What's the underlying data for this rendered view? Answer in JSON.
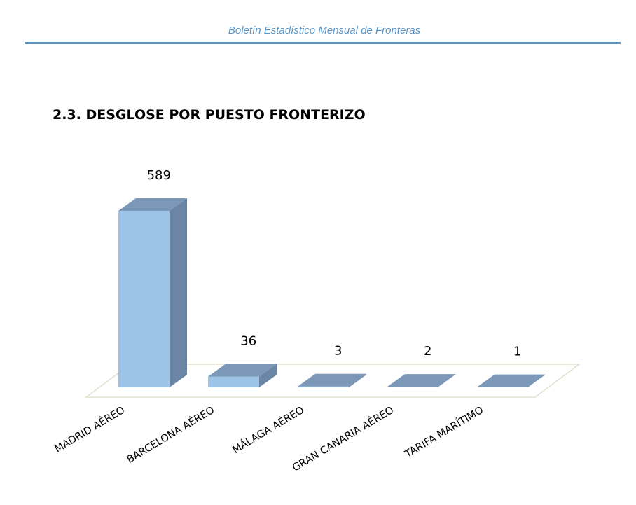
{
  "header": {
    "title": "Boletín Estadístico Mensual de Fronteras"
  },
  "section": {
    "title": "2.3. DESGLOSE POR PUESTO FRONTERIZO"
  },
  "colors": {
    "accent": "#5b95c6",
    "bar_front": "#9dc3e6",
    "bar_side": "#6a86a4",
    "bar_top": "#7b98b8",
    "floor_stroke": "#e3dfcf"
  },
  "chart_data": {
    "type": "bar",
    "title": "",
    "xlabel": "",
    "ylabel": "",
    "categories": [
      "MADRID AÉREO",
      "BARCELONA AÉREO",
      "MÁLAGA AÉREO",
      "GRAN CANARIA AÉREO",
      "TARIFA MARÍTIMO"
    ],
    "values": [
      589,
      36,
      3,
      2,
      1
    ],
    "data_labels": [
      "589",
      "36",
      "3",
      "2",
      "1"
    ],
    "ylim": [
      0,
      589
    ],
    "grid": false,
    "legend": "none",
    "style": "3d-column"
  }
}
